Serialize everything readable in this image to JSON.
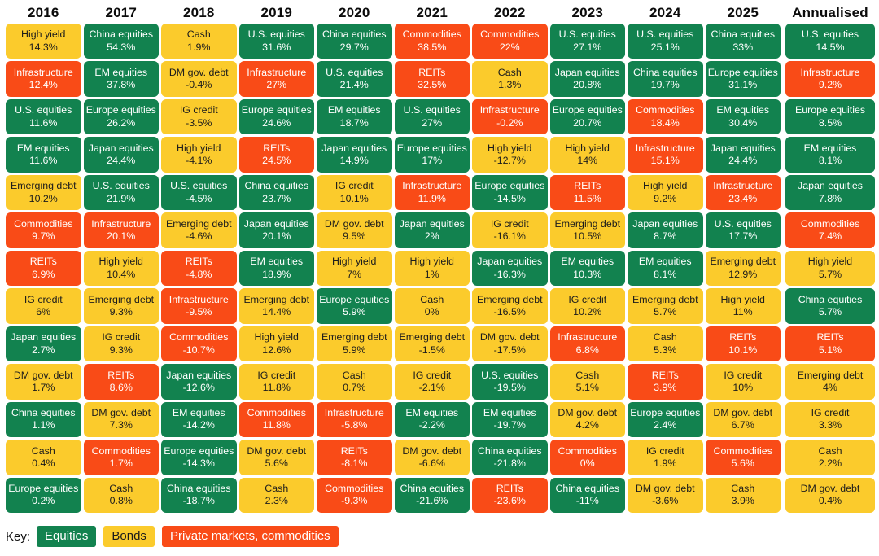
{
  "chart_data": {
    "type": "table",
    "title": "Asset class returns by calendar year (quilt chart)",
    "unit": "percent return",
    "colors": {
      "equities": "#12824F",
      "bonds": "#FBCB2C",
      "private": "#F94B17",
      "text_on_color": "#FFFFFF",
      "text_on_yellow": "#1C1C1C",
      "gap": "#FFFFFF",
      "header_text": "#0B0B0B"
    },
    "asset_categories": {
      "U.S. equities": "equities",
      "EM equities": "equities",
      "Europe equities": "equities",
      "Japan equities": "equities",
      "China equities": "equities",
      "High yield": "bonds",
      "Emerging debt": "bonds",
      "IG credit": "bonds",
      "DM gov. debt": "bonds",
      "Cash": "bonds",
      "Infrastructure": "private",
      "Commodities": "private",
      "REITs": "private"
    },
    "columns": [
      {
        "label": "2016",
        "cells": [
          [
            "High yield",
            "14.3%"
          ],
          [
            "Infrastructure",
            "12.4%"
          ],
          [
            "U.S. equities",
            "11.6%"
          ],
          [
            "EM equities",
            "11.6%"
          ],
          [
            "Emerging debt",
            "10.2%"
          ],
          [
            "Commodities",
            "9.7%"
          ],
          [
            "REITs",
            "6.9%"
          ],
          [
            "IG credit",
            "6%"
          ],
          [
            "Japan equities",
            "2.7%"
          ],
          [
            "DM gov. debt",
            "1.7%"
          ],
          [
            "China equities",
            "1.1%"
          ],
          [
            "Cash",
            "0.4%"
          ],
          [
            "Europe equities",
            "0.2%"
          ]
        ]
      },
      {
        "label": "2017",
        "cells": [
          [
            "China equities",
            "54.3%"
          ],
          [
            "EM equities",
            "37.8%"
          ],
          [
            "Europe equities",
            "26.2%"
          ],
          [
            "Japan equities",
            "24.4%"
          ],
          [
            "U.S. equities",
            "21.9%"
          ],
          [
            "Infrastructure",
            "20.1%"
          ],
          [
            "High yield",
            "10.4%"
          ],
          [
            "Emerging debt",
            "9.3%"
          ],
          [
            "IG credit",
            "9.3%"
          ],
          [
            "REITs",
            "8.6%"
          ],
          [
            "DM gov. debt",
            "7.3%"
          ],
          [
            "Commodities",
            "1.7%"
          ],
          [
            "Cash",
            "0.8%"
          ]
        ]
      },
      {
        "label": "2018",
        "cells": [
          [
            "Cash",
            "1.9%"
          ],
          [
            "DM gov. debt",
            "-0.4%"
          ],
          [
            "IG credit",
            "-3.5%"
          ],
          [
            "High yield",
            "-4.1%"
          ],
          [
            "U.S. equities",
            "-4.5%"
          ],
          [
            "Emerging debt",
            "-4.6%"
          ],
          [
            "REITs",
            "-4.8%"
          ],
          [
            "Infrastructure",
            "-9.5%"
          ],
          [
            "Commodities",
            "-10.7%"
          ],
          [
            "Japan equities",
            "-12.6%"
          ],
          [
            "EM equities",
            "-14.2%"
          ],
          [
            "Europe equities",
            "-14.3%"
          ],
          [
            "China equities",
            "-18.7%"
          ]
        ]
      },
      {
        "label": "2019",
        "cells": [
          [
            "U.S. equities",
            "31.6%"
          ],
          [
            "Infrastructure",
            "27%"
          ],
          [
            "Europe equities",
            "24.6%"
          ],
          [
            "REITs",
            "24.5%"
          ],
          [
            "China equities",
            "23.7%"
          ],
          [
            "Japan equities",
            "20.1%"
          ],
          [
            "EM equities",
            "18.9%"
          ],
          [
            "Emerging debt",
            "14.4%"
          ],
          [
            "High yield",
            "12.6%"
          ],
          [
            "IG credit",
            "11.8%"
          ],
          [
            "Commodities",
            "11.8%"
          ],
          [
            "DM gov. debt",
            "5.6%"
          ],
          [
            "Cash",
            "2.3%"
          ]
        ]
      },
      {
        "label": "2020",
        "cells": [
          [
            "China equities",
            "29.7%"
          ],
          [
            "U.S. equities",
            "21.4%"
          ],
          [
            "EM equities",
            "18.7%"
          ],
          [
            "Japan equities",
            "14.9%"
          ],
          [
            "IG credit",
            "10.1%"
          ],
          [
            "DM gov. debt",
            "9.5%"
          ],
          [
            "High yield",
            "7%"
          ],
          [
            "Europe equities",
            "5.9%"
          ],
          [
            "Emerging debt",
            "5.9%"
          ],
          [
            "Cash",
            "0.7%"
          ],
          [
            "Infrastructure",
            "-5.8%"
          ],
          [
            "REITs",
            "-8.1%"
          ],
          [
            "Commodities",
            "-9.3%"
          ]
        ]
      },
      {
        "label": "2021",
        "cells": [
          [
            "Commodities",
            "38.5%"
          ],
          [
            "REITs",
            "32.5%"
          ],
          [
            "U.S. equities",
            "27%"
          ],
          [
            "Europe equities",
            "17%"
          ],
          [
            "Infrastructure",
            "11.9%"
          ],
          [
            "Japan equities",
            "2%"
          ],
          [
            "High yield",
            "1%"
          ],
          [
            "Cash",
            "0%"
          ],
          [
            "Emerging debt",
            "-1.5%"
          ],
          [
            "IG credit",
            "-2.1%"
          ],
          [
            "EM equities",
            "-2.2%"
          ],
          [
            "DM gov. debt",
            "-6.6%"
          ],
          [
            "China equities",
            "-21.6%"
          ]
        ]
      },
      {
        "label": "2022",
        "cells": [
          [
            "Commodities",
            "22%"
          ],
          [
            "Cash",
            "1.3%"
          ],
          [
            "Infrastructure",
            "-0.2%"
          ],
          [
            "High yield",
            "-12.7%"
          ],
          [
            "Europe equities",
            "-14.5%"
          ],
          [
            "IG credit",
            "-16.1%"
          ],
          [
            "Japan equities",
            "-16.3%"
          ],
          [
            "Emerging debt",
            "-16.5%"
          ],
          [
            "DM gov. debt",
            "-17.5%"
          ],
          [
            "U.S. equities",
            "-19.5%"
          ],
          [
            "EM equities",
            "-19.7%"
          ],
          [
            "China equities",
            "-21.8%"
          ],
          [
            "REITs",
            "-23.6%"
          ]
        ]
      },
      {
        "label": "2023",
        "cells": [
          [
            "U.S. equities",
            "27.1%"
          ],
          [
            "Japan equities",
            "20.8%"
          ],
          [
            "Europe equities",
            "20.7%"
          ],
          [
            "High yield",
            "14%"
          ],
          [
            "REITs",
            "11.5%"
          ],
          [
            "Emerging debt",
            "10.5%"
          ],
          [
            "EM equities",
            "10.3%"
          ],
          [
            "IG credit",
            "10.2%"
          ],
          [
            "Infrastructure",
            "6.8%"
          ],
          [
            "Cash",
            "5.1%"
          ],
          [
            "DM gov. debt",
            "4.2%"
          ],
          [
            "Commodities",
            "0%"
          ],
          [
            "China equities",
            "-11%"
          ]
        ]
      },
      {
        "label": "2024",
        "cells": [
          [
            "U.S. equities",
            "25.1%"
          ],
          [
            "China equities",
            "19.7%"
          ],
          [
            "Commodities",
            "18.4%"
          ],
          [
            "Infrastructure",
            "15.1%"
          ],
          [
            "High yield",
            "9.2%"
          ],
          [
            "Japan equities",
            "8.7%"
          ],
          [
            "EM equities",
            "8.1%"
          ],
          [
            "Emerging debt",
            "5.7%"
          ],
          [
            "Cash",
            "5.3%"
          ],
          [
            "REITs",
            "3.9%"
          ],
          [
            "Europe equities",
            "2.4%"
          ],
          [
            "IG credit",
            "1.9%"
          ],
          [
            "DM gov. debt",
            "-3.6%"
          ]
        ]
      },
      {
        "label": "2025",
        "cells": [
          [
            "China equities",
            "33%"
          ],
          [
            "Europe equities",
            "31.1%"
          ],
          [
            "EM equities",
            "30.4%"
          ],
          [
            "Japan equities",
            "24.4%"
          ],
          [
            "Infrastructure",
            "23.4%"
          ],
          [
            "U.S. equities",
            "17.7%"
          ],
          [
            "Emerging debt",
            "12.9%"
          ],
          [
            "High yield",
            "11%"
          ],
          [
            "REITs",
            "10.1%"
          ],
          [
            "IG credit",
            "10%"
          ],
          [
            "DM gov. debt",
            "6.7%"
          ],
          [
            "Commodities",
            "5.6%"
          ],
          [
            "Cash",
            "3.9%"
          ]
        ]
      },
      {
        "label": "Annualised",
        "cells": [
          [
            "U.S. equities",
            "14.5%"
          ],
          [
            "Infrastructure",
            "9.2%"
          ],
          [
            "Europe equities",
            "8.5%"
          ],
          [
            "EM equities",
            "8.1%"
          ],
          [
            "Japan equities",
            "7.8%"
          ],
          [
            "Commodities",
            "7.4%"
          ],
          [
            "High yield",
            "5.7%"
          ],
          [
            "China equities",
            "5.7%"
          ],
          [
            "REITs",
            "5.1%"
          ],
          [
            "Emerging debt",
            "4%"
          ],
          [
            "IG credit",
            "3.3%"
          ],
          [
            "Cash",
            "2.2%"
          ],
          [
            "DM gov. debt",
            "0.4%"
          ]
        ]
      }
    ],
    "legend": {
      "label": "Key:",
      "items": [
        {
          "label": "Equities",
          "category": "equities"
        },
        {
          "label": "Bonds",
          "category": "bonds"
        },
        {
          "label": "Private markets, commodities",
          "category": "private"
        }
      ],
      "position": "bottom-left"
    }
  }
}
